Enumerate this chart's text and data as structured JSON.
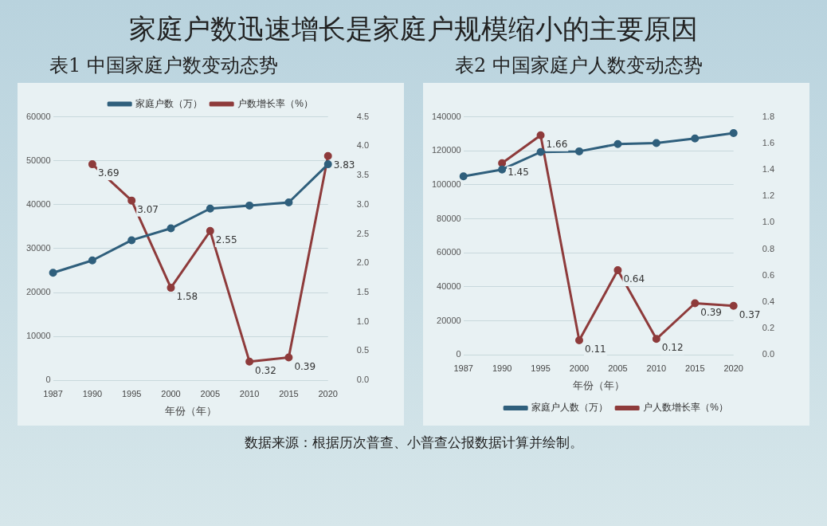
{
  "chart_data": [
    {
      "type": "line",
      "title": "家庭户数迅速增长是家庭户规模缩小的主要原因",
      "subtitle": "表1 中国家庭户数变动态势",
      "xlabel": "年份（年）",
      "categories": [
        "1987",
        "1990",
        "1995",
        "2000",
        "2005",
        "2010",
        "2015",
        "2020"
      ],
      "series": [
        {
          "name": "家庭户数（万）",
          "color": "#2f5f7c",
          "values": [
            24500,
            27300,
            31900,
            34600,
            39100,
            39800,
            40500,
            49200
          ]
        },
        {
          "name": "户数增长率（%）",
          "color": "#8e3b3b",
          "axis": "y2",
          "values": [
            null,
            3.69,
            3.07,
            1.58,
            2.55,
            0.32,
            0.39,
            3.83
          ],
          "value_labels": [
            null,
            "3.69",
            "3.07",
            "1.58",
            "2.55",
            "0.32",
            "0.39",
            "3.83"
          ]
        }
      ],
      "ylim": [
        0,
        60000
      ],
      "yticks": [
        0,
        10000,
        20000,
        30000,
        40000,
        50000,
        60000
      ],
      "y2lim": [
        0,
        4.5
      ],
      "y2ticks": [
        {
          "value": 0,
          "label": "0.0"
        },
        0.5,
        {
          "value": 1,
          "label": "1.0"
        },
        1.5,
        {
          "value": 2,
          "label": "2.0"
        },
        2.5,
        {
          "value": 3,
          "label": "3.0"
        },
        3.5,
        {
          "value": 4,
          "label": "4.0"
        },
        4.5
      ],
      "grid": "y",
      "legend": "top",
      "marker": "circle",
      "line_style": "solid",
      "annotations": [
        "数据来源：根据历次普查、小普查公报数据计算并绘制。"
      ]
    },
    {
      "type": "line",
      "subtitle": "表2 中国家庭户人数变动态势",
      "xlabel": "年份（年）",
      "categories": [
        "1987",
        "1990",
        "1995",
        "2000",
        "2005",
        "2010",
        "2015",
        "2020"
      ],
      "series": [
        {
          "name": "家庭户人数（万）",
          "color": "#2f5f7c",
          "values": [
            105000,
            109000,
            119300,
            119700,
            124000,
            124600,
            127300,
            130400
          ]
        },
        {
          "name": "户人数增长率（%）",
          "color": "#8e3b3b",
          "axis": "y2",
          "values": [
            null,
            1.45,
            1.66,
            0.11,
            0.64,
            0.12,
            0.39,
            0.37
          ],
          "value_labels": [
            null,
            "1.45",
            "1.66",
            "0.11",
            "0.64",
            "0.12",
            "0.39",
            "0.37"
          ]
        }
      ],
      "ylim": [
        0,
        140000
      ],
      "yticks": [
        0,
        20000,
        40000,
        60000,
        80000,
        100000,
        120000,
        140000
      ],
      "y2lim": [
        0,
        1.8
      ],
      "y2ticks": [
        {
          "value": 0,
          "label": "0.0"
        },
        0.2,
        0.4,
        0.6,
        0.8,
        {
          "value": 1,
          "label": "1.0"
        },
        1.2,
        1.4,
        1.6,
        1.8
      ],
      "grid": "y",
      "legend": "bottom",
      "marker": "circle",
      "line_style": "solid"
    }
  ]
}
